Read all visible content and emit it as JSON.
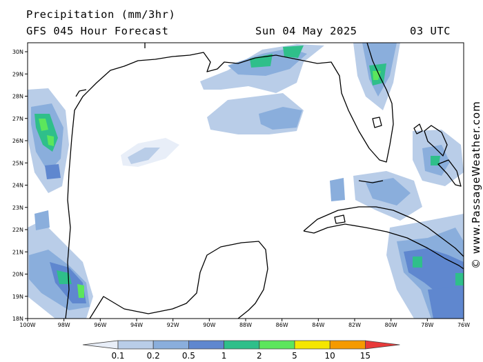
{
  "header": {
    "title": "Precipitation (mm/3hr)",
    "subtitle": "GFS 045 Hour Forecast",
    "date": "Sun 04 May 2025",
    "utc": "03 UTC"
  },
  "map": {
    "region": "Gulf of Mexico",
    "lon_range": [
      -100,
      -76
    ],
    "lat_range": [
      18,
      31
    ],
    "lat_labels": [
      "18N",
      "19N",
      "20N",
      "21N",
      "22N",
      "23N",
      "24N",
      "25N",
      "26N",
      "27N",
      "28N",
      "29N",
      "30N"
    ],
    "lon_labels": [
      "100W",
      "98W",
      "96W",
      "94W",
      "92W",
      "90W",
      "88W",
      "86W",
      "84W",
      "82W",
      "80W",
      "78W",
      "76W"
    ]
  },
  "colorbar": {
    "labels": [
      "0.1",
      "0.2",
      "0.5",
      "1",
      "2",
      "5",
      "10",
      "15"
    ],
    "colors": [
      "#e8eef8",
      "#b9cde8",
      "#8aaedc",
      "#5f87cf",
      "#2fbf8a",
      "#5ce65c",
      "#f5e600",
      "#f59a00",
      "#e83a3a"
    ]
  },
  "credit": "© www.PassageWeather.com"
}
